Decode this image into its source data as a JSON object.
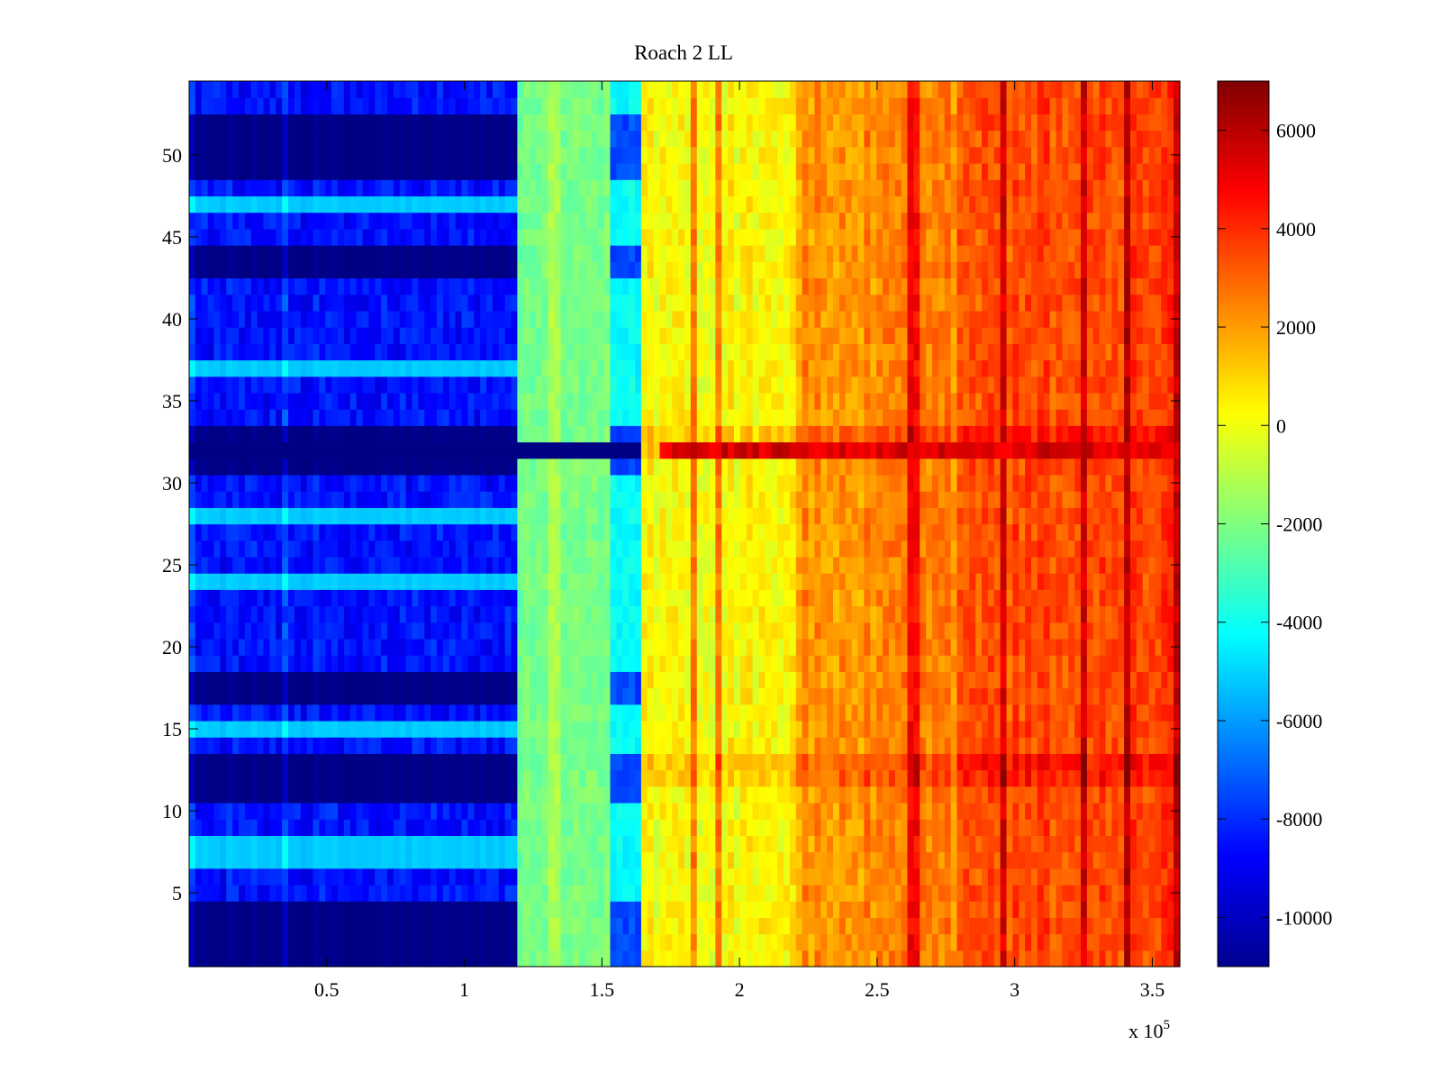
{
  "chart_data": {
    "type": "heatmap",
    "title": "Roach 2 LL",
    "xlabel": "",
    "ylabel": "",
    "x_multiplier_label": "x 10",
    "x_multiplier_exponent": "5",
    "xlim": [
      0,
      3.6
    ],
    "ylim": [
      0.5,
      54.5
    ],
    "x_ticks": [
      0.5,
      1,
      1.5,
      2,
      2.5,
      3,
      3.5
    ],
    "x_tick_labels": [
      "0.5",
      "1",
      "1.5",
      "2",
      "2.5",
      "3",
      "3.5"
    ],
    "y_ticks": [
      5,
      10,
      15,
      20,
      25,
      30,
      35,
      40,
      45,
      50
    ],
    "y_tick_labels": [
      "5",
      "10",
      "15",
      "20",
      "25",
      "30",
      "35",
      "40",
      "45",
      "50"
    ],
    "rows": 54,
    "colorbar": {
      "colormap": "jet",
      "range": [
        -11000,
        7000
      ],
      "ticks": [
        -10000,
        -8000,
        -6000,
        -4000,
        -2000,
        0,
        2000,
        4000,
        6000
      ],
      "tick_labels": [
        "-10000",
        "-8000",
        "-6000",
        "-4000",
        "-2000",
        "0",
        "2000",
        "4000",
        "6000"
      ]
    },
    "segments": [
      {
        "x_range": [
          0,
          1.2
        ],
        "base_value": -8500
      },
      {
        "x_range": [
          1.2,
          1.53
        ],
        "base_value": -2200
      },
      {
        "x_range": [
          1.53,
          1.65
        ],
        "base_value": -4200
      },
      {
        "x_range": [
          1.65,
          2.2
        ],
        "base_value": 200
      },
      {
        "x_range": [
          2.2,
          2.8
        ],
        "base_value": 1800
      },
      {
        "x_range": [
          2.8,
          3.6
        ],
        "base_value": 2700
      }
    ],
    "dark_rows_left": [
      1,
      2,
      3,
      4,
      11,
      12,
      13,
      17,
      18,
      31,
      32,
      33,
      43,
      44,
      49,
      50,
      51,
      52
    ],
    "light_rows_left": [
      7,
      8,
      15,
      24,
      28,
      37,
      47
    ],
    "hot_rows_right": [
      12,
      13,
      32,
      33
    ],
    "extreme_row": {
      "row": 32,
      "x_start": 1.7,
      "value": 6200
    }
  }
}
